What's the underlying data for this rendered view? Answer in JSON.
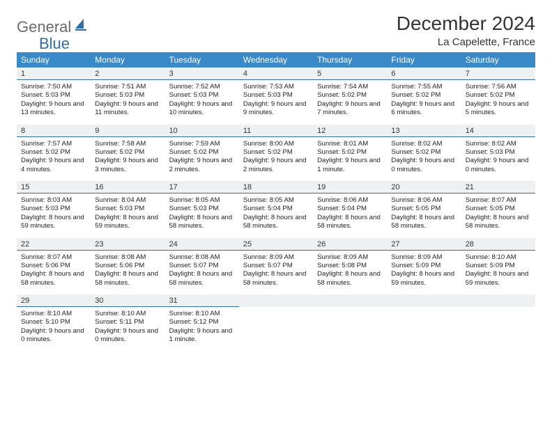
{
  "logo": {
    "word1": "General",
    "word2": "Blue",
    "word1_color": "#6b6b6b",
    "word2_color": "#2f6fa8"
  },
  "title": "December 2024",
  "location": "La Capelette, France",
  "colors": {
    "header_bg": "#3a89c9",
    "header_text": "#ffffff",
    "daynum_bg": "#eef0f1",
    "daynum_border": "#2f6fa8",
    "body_text": "#222222"
  },
  "dow": [
    "Sunday",
    "Monday",
    "Tuesday",
    "Wednesday",
    "Thursday",
    "Friday",
    "Saturday"
  ],
  "weeks": [
    [
      {
        "n": "1",
        "sr": "Sunrise: 7:50 AM",
        "ss": "Sunset: 5:03 PM",
        "dl": "Daylight: 9 hours and 13 minutes."
      },
      {
        "n": "2",
        "sr": "Sunrise: 7:51 AM",
        "ss": "Sunset: 5:03 PM",
        "dl": "Daylight: 9 hours and 11 minutes."
      },
      {
        "n": "3",
        "sr": "Sunrise: 7:52 AM",
        "ss": "Sunset: 5:03 PM",
        "dl": "Daylight: 9 hours and 10 minutes."
      },
      {
        "n": "4",
        "sr": "Sunrise: 7:53 AM",
        "ss": "Sunset: 5:03 PM",
        "dl": "Daylight: 9 hours and 9 minutes."
      },
      {
        "n": "5",
        "sr": "Sunrise: 7:54 AM",
        "ss": "Sunset: 5:02 PM",
        "dl": "Daylight: 9 hours and 7 minutes."
      },
      {
        "n": "6",
        "sr": "Sunrise: 7:55 AM",
        "ss": "Sunset: 5:02 PM",
        "dl": "Daylight: 9 hours and 6 minutes."
      },
      {
        "n": "7",
        "sr": "Sunrise: 7:56 AM",
        "ss": "Sunset: 5:02 PM",
        "dl": "Daylight: 9 hours and 5 minutes."
      }
    ],
    [
      {
        "n": "8",
        "sr": "Sunrise: 7:57 AM",
        "ss": "Sunset: 5:02 PM",
        "dl": "Daylight: 9 hours and 4 minutes."
      },
      {
        "n": "9",
        "sr": "Sunrise: 7:58 AM",
        "ss": "Sunset: 5:02 PM",
        "dl": "Daylight: 9 hours and 3 minutes."
      },
      {
        "n": "10",
        "sr": "Sunrise: 7:59 AM",
        "ss": "Sunset: 5:02 PM",
        "dl": "Daylight: 9 hours and 2 minutes."
      },
      {
        "n": "11",
        "sr": "Sunrise: 8:00 AM",
        "ss": "Sunset: 5:02 PM",
        "dl": "Daylight: 9 hours and 2 minutes."
      },
      {
        "n": "12",
        "sr": "Sunrise: 8:01 AM",
        "ss": "Sunset: 5:02 PM",
        "dl": "Daylight: 9 hours and 1 minute."
      },
      {
        "n": "13",
        "sr": "Sunrise: 8:02 AM",
        "ss": "Sunset: 5:02 PM",
        "dl": "Daylight: 9 hours and 0 minutes."
      },
      {
        "n": "14",
        "sr": "Sunrise: 8:02 AM",
        "ss": "Sunset: 5:03 PM",
        "dl": "Daylight: 9 hours and 0 minutes."
      }
    ],
    [
      {
        "n": "15",
        "sr": "Sunrise: 8:03 AM",
        "ss": "Sunset: 5:03 PM",
        "dl": "Daylight: 8 hours and 59 minutes."
      },
      {
        "n": "16",
        "sr": "Sunrise: 8:04 AM",
        "ss": "Sunset: 5:03 PM",
        "dl": "Daylight: 8 hours and 59 minutes."
      },
      {
        "n": "17",
        "sr": "Sunrise: 8:05 AM",
        "ss": "Sunset: 5:03 PM",
        "dl": "Daylight: 8 hours and 58 minutes."
      },
      {
        "n": "18",
        "sr": "Sunrise: 8:05 AM",
        "ss": "Sunset: 5:04 PM",
        "dl": "Daylight: 8 hours and 58 minutes."
      },
      {
        "n": "19",
        "sr": "Sunrise: 8:06 AM",
        "ss": "Sunset: 5:04 PM",
        "dl": "Daylight: 8 hours and 58 minutes."
      },
      {
        "n": "20",
        "sr": "Sunrise: 8:06 AM",
        "ss": "Sunset: 5:05 PM",
        "dl": "Daylight: 8 hours and 58 minutes."
      },
      {
        "n": "21",
        "sr": "Sunrise: 8:07 AM",
        "ss": "Sunset: 5:05 PM",
        "dl": "Daylight: 8 hours and 58 minutes."
      }
    ],
    [
      {
        "n": "22",
        "sr": "Sunrise: 8:07 AM",
        "ss": "Sunset: 5:06 PM",
        "dl": "Daylight: 8 hours and 58 minutes."
      },
      {
        "n": "23",
        "sr": "Sunrise: 8:08 AM",
        "ss": "Sunset: 5:06 PM",
        "dl": "Daylight: 8 hours and 58 minutes."
      },
      {
        "n": "24",
        "sr": "Sunrise: 8:08 AM",
        "ss": "Sunset: 5:07 PM",
        "dl": "Daylight: 8 hours and 58 minutes."
      },
      {
        "n": "25",
        "sr": "Sunrise: 8:09 AM",
        "ss": "Sunset: 5:07 PM",
        "dl": "Daylight: 8 hours and 58 minutes."
      },
      {
        "n": "26",
        "sr": "Sunrise: 8:09 AM",
        "ss": "Sunset: 5:08 PM",
        "dl": "Daylight: 8 hours and 58 minutes."
      },
      {
        "n": "27",
        "sr": "Sunrise: 8:09 AM",
        "ss": "Sunset: 5:09 PM",
        "dl": "Daylight: 8 hours and 59 minutes."
      },
      {
        "n": "28",
        "sr": "Sunrise: 8:10 AM",
        "ss": "Sunset: 5:09 PM",
        "dl": "Daylight: 8 hours and 59 minutes."
      }
    ],
    [
      {
        "n": "29",
        "sr": "Sunrise: 8:10 AM",
        "ss": "Sunset: 5:10 PM",
        "dl": "Daylight: 9 hours and 0 minutes."
      },
      {
        "n": "30",
        "sr": "Sunrise: 8:10 AM",
        "ss": "Sunset: 5:11 PM",
        "dl": "Daylight: 9 hours and 0 minutes."
      },
      {
        "n": "31",
        "sr": "Sunrise: 8:10 AM",
        "ss": "Sunset: 5:12 PM",
        "dl": "Daylight: 9 hours and 1 minute."
      },
      null,
      null,
      null,
      null
    ]
  ]
}
